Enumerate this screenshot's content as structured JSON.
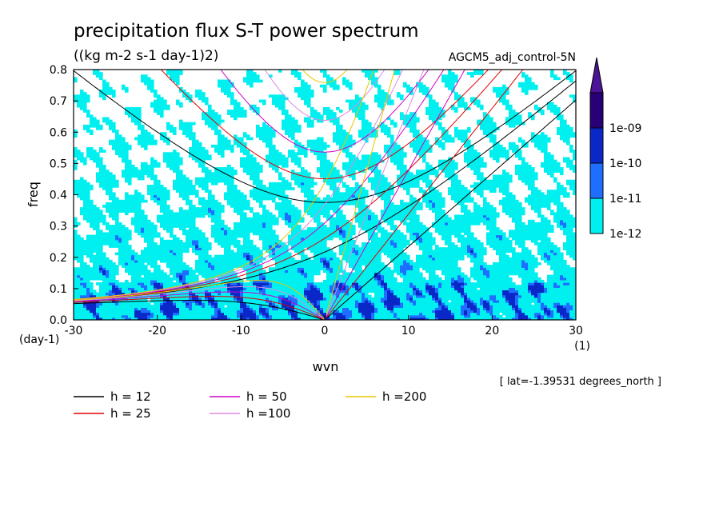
{
  "chart_data": {
    "type": "heatmap",
    "title": "precipitation flux S-T power spectrum",
    "units": "((kg m-2 s-1 day-1)2)",
    "experiment": "AGCM5_adj_control-5N",
    "xlabel": "wvn",
    "ylabel": "freq",
    "x_unit": "(1)",
    "y_unit": "(day-1)",
    "xlim": [
      -30,
      30
    ],
    "ylim": [
      0,
      0.8
    ],
    "xticks": [
      -30,
      -20,
      -10,
      0,
      10,
      20,
      30
    ],
    "xtick_labels": [
      "-30",
      "-20",
      "-10",
      "0",
      "10",
      "20",
      "30"
    ],
    "yticks": [
      0,
      0.1,
      0.2,
      0.3,
      0.4,
      0.5,
      0.6,
      0.7,
      0.8
    ],
    "ytick_labels": [
      "0.0",
      "0.1",
      "0.2",
      "0.3",
      "0.4",
      "0.5",
      "0.6",
      "0.7",
      "0.8"
    ],
    "colorbar": {
      "levels": [
        "1e-12",
        "1e-11",
        "1e-10",
        "1e-09"
      ],
      "colors": [
        "#00f0f0",
        "#1e6eff",
        "#0a28c8",
        "#2a0078",
        "#4b1496"
      ]
    },
    "dispersion_curves": [
      {
        "label": "h = 12",
        "h": 12,
        "color": "#000000"
      },
      {
        "label": "h = 25",
        "h": 25,
        "color": "#e00000"
      },
      {
        "label": "h = 50",
        "h": 50,
        "color": "#d000c8"
      },
      {
        "label": "h =100",
        "h": 100,
        "color": "#d88ce0"
      },
      {
        "label": "h =200",
        "h": 200,
        "color": "#e6c800"
      }
    ],
    "annotation": "[ lat=-1.39531 degrees_north ]"
  }
}
